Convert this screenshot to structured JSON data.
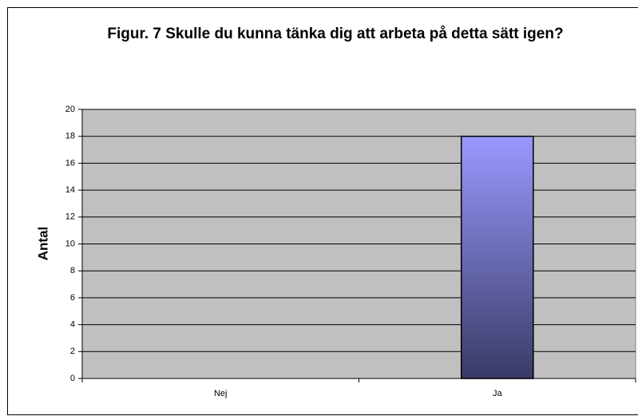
{
  "chart_data": {
    "type": "bar",
    "title": "Figur. 7 Skulle du kunna tänka dig att arbeta på detta sätt igen?",
    "y_label": "Antal",
    "categories": [
      "Nej",
      "Ja"
    ],
    "values": [
      0,
      18
    ],
    "color": "#9999ff",
    "ylim": [
      0,
      20
    ],
    "yticks": [
      0,
      2,
      4,
      6,
      8,
      10,
      12,
      14,
      16,
      18,
      20
    ],
    "grid": true
  }
}
